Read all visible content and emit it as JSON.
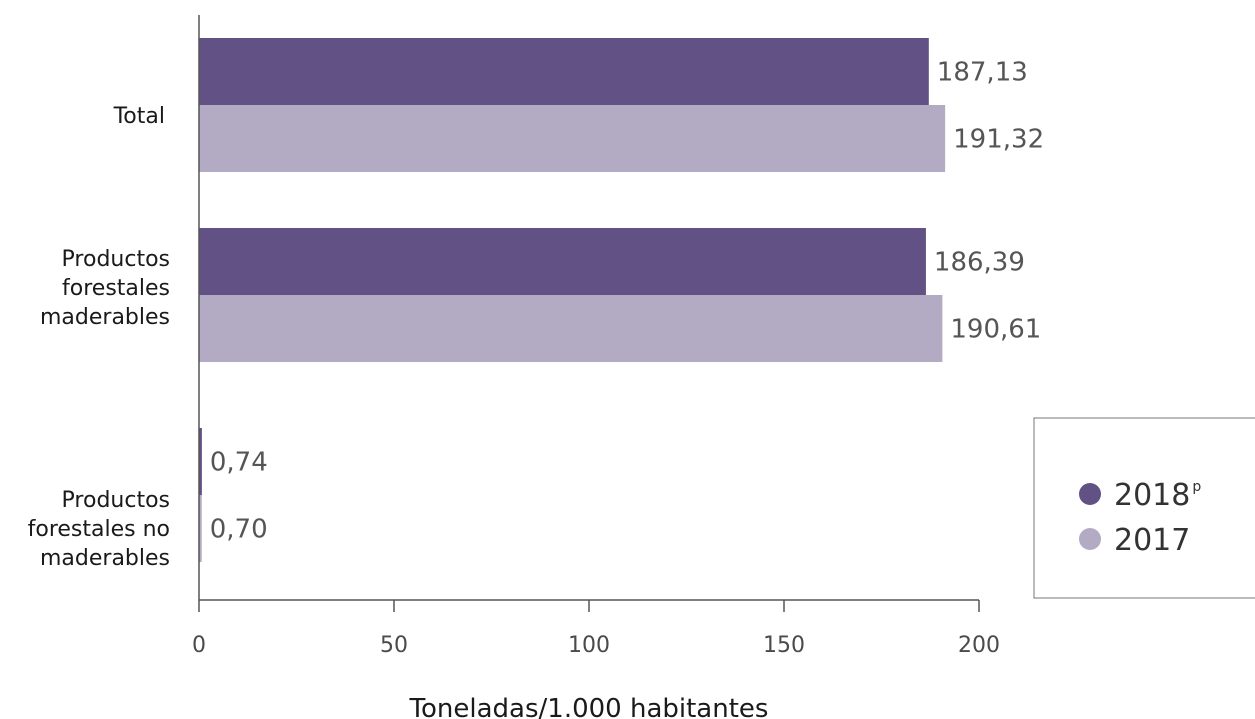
{
  "chart_data": {
    "type": "bar",
    "orientation": "horizontal",
    "categories": [
      [
        "Total"
      ],
      [
        "Productos",
        "forestales",
        "maderables"
      ],
      [
        "Productos",
        "forestales no",
        "maderables"
      ]
    ],
    "series": [
      {
        "name": "2018",
        "name_superscript": "p",
        "color": "#625185",
        "values": [
          187.13,
          186.39,
          0.74
        ],
        "labels": [
          "187,13",
          "186,39",
          "0,74"
        ]
      },
      {
        "name": "2017",
        "name_superscript": "",
        "color": "#b3aac4",
        "values": [
          191.32,
          190.61,
          0.7
        ],
        "labels": [
          "191,32",
          "190,61",
          "0,70"
        ]
      }
    ],
    "xlabel": "Toneladas/1.000 habitantes",
    "xlim": [
      0,
      200
    ],
    "xticks": [
      0,
      50,
      100,
      150,
      200
    ],
    "legend_position": "right"
  }
}
